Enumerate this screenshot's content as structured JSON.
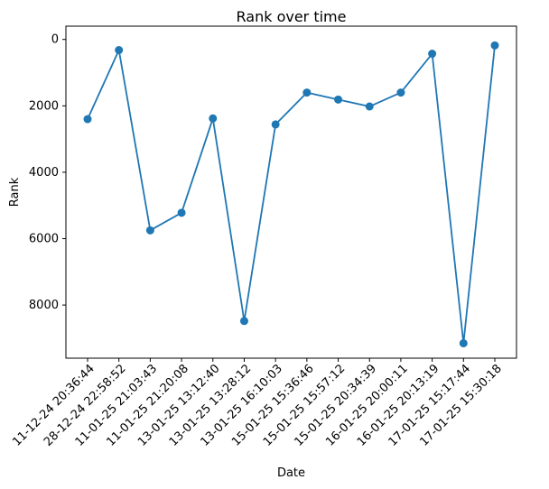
{
  "chart_data": {
    "type": "line",
    "title": "Rank over time",
    "xlabel": "Date",
    "ylabel": "Rank",
    "y_inverted": true,
    "ylim": [
      9600,
      -400
    ],
    "y_ticks": [
      0,
      2000,
      4000,
      6000,
      8000
    ],
    "y_tick_labels": [
      "0",
      "2000",
      "4000",
      "6000",
      "8000"
    ],
    "x_tick_rotation_deg": 45,
    "grid": false,
    "legend": "none",
    "line_color": "#1f77b4",
    "marker": "circle",
    "categories": [
      "11-12-24 20:36:44",
      "28-12-24 22:58:52",
      "11-01-25 21:03:43",
      "11-01-25 21:20:08",
      "13-01-25 13:12:40",
      "13-01-25 13:28:12",
      "13-01-25 16:10:03",
      "15-01-25 15:36:46",
      "15-01-25 15:57:12",
      "15-01-25 20:34:39",
      "16-01-25 20:00:11",
      "16-01-25 20:13:19",
      "17-01-25 15:17:44",
      "17-01-25 15:30:18"
    ],
    "values": [
      2400,
      320,
      5750,
      5220,
      2380,
      8480,
      2560,
      1600,
      1810,
      2020,
      1600,
      430,
      9150,
      180
    ]
  }
}
